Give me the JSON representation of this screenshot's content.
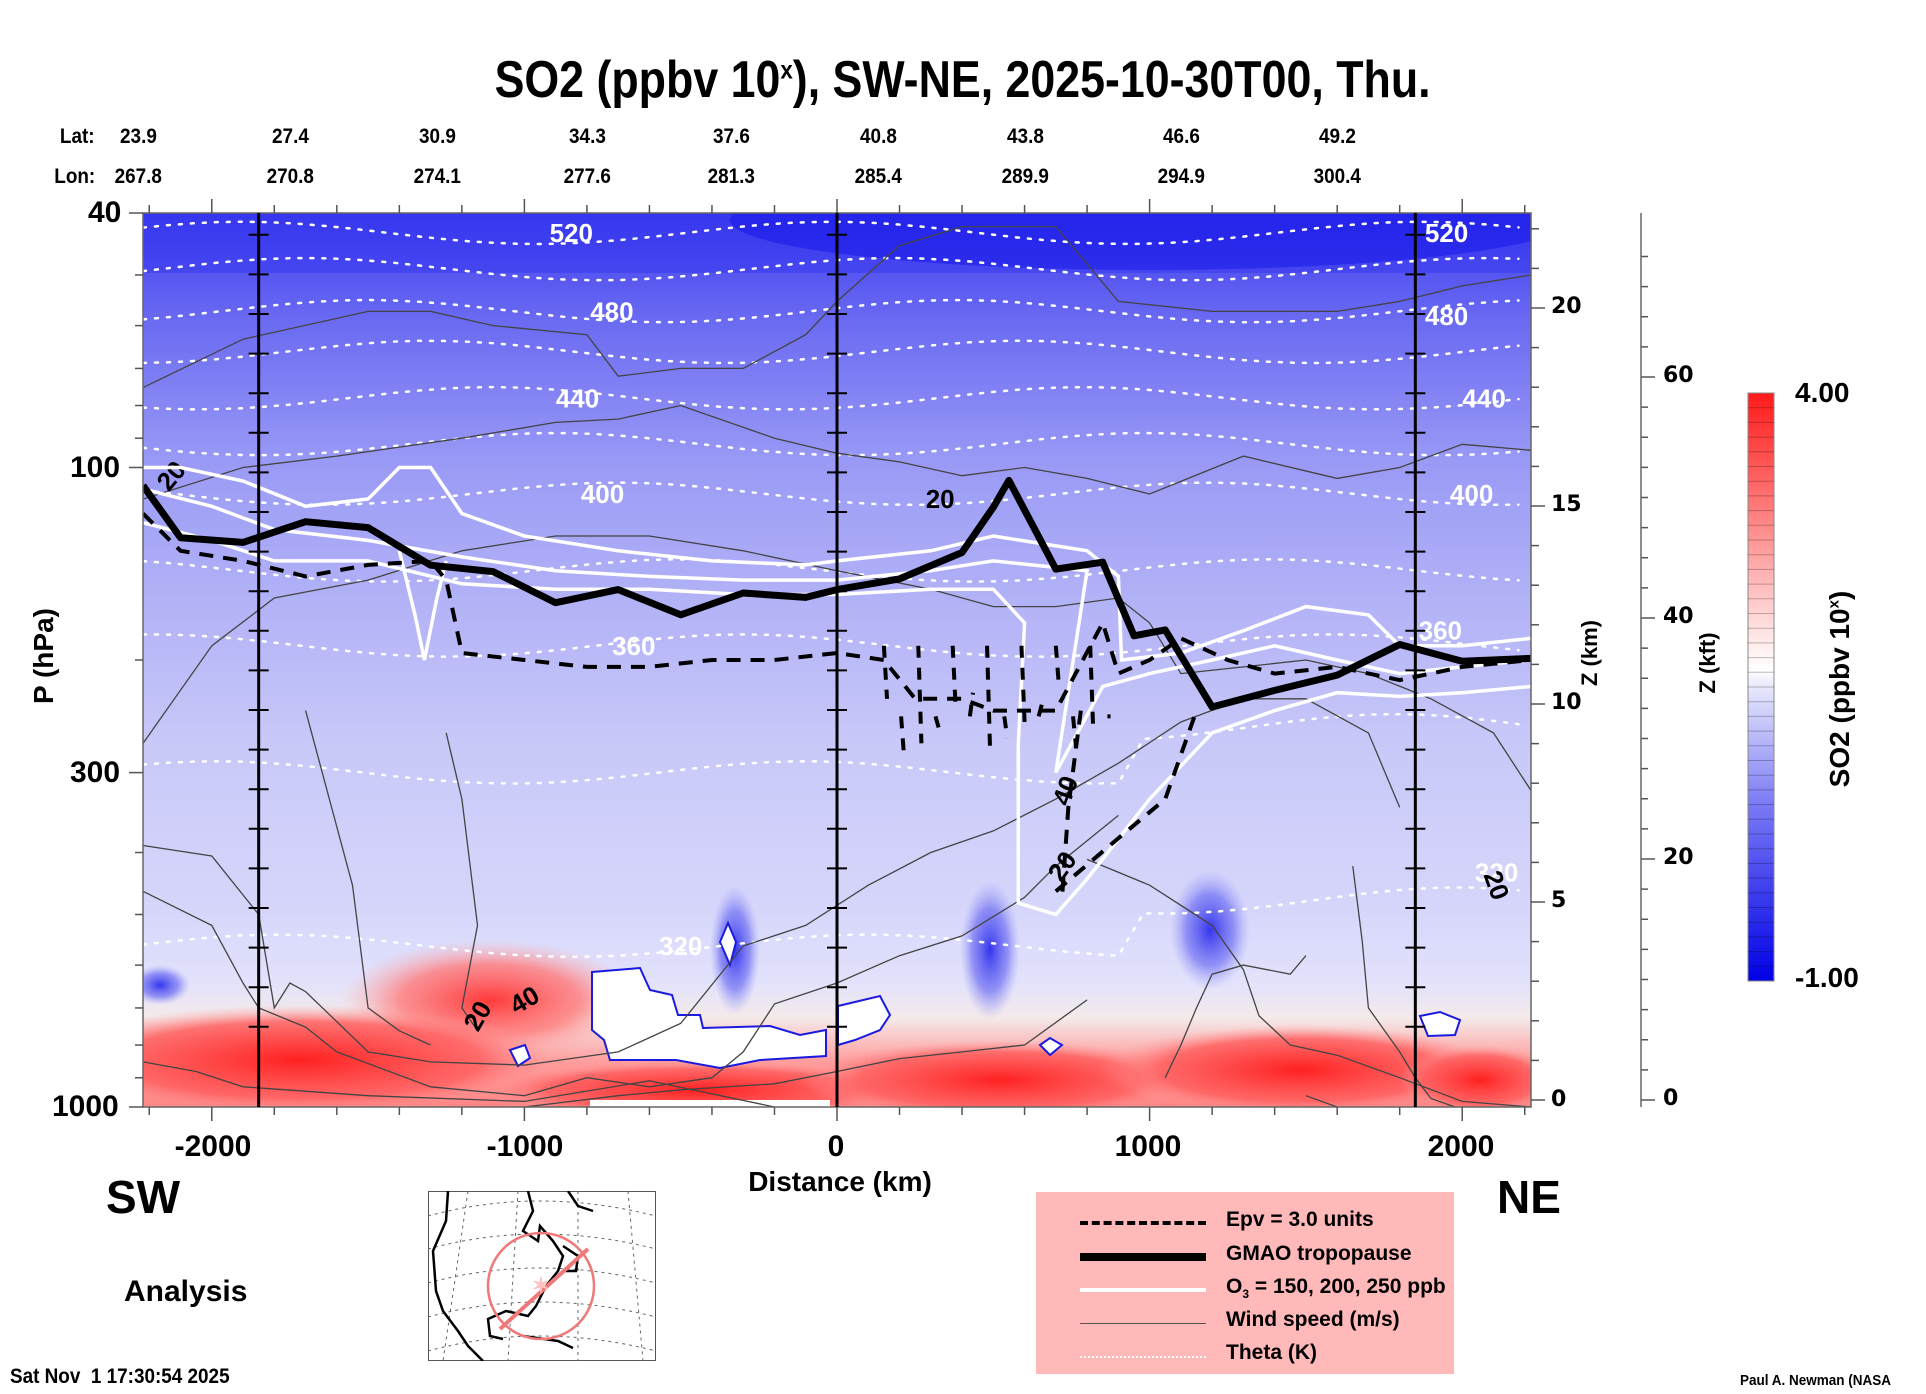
{
  "chart_data": {
    "type": "heatmap",
    "title": "SO2 (ppbv 10^x), SW-NE, 2025-10-30T00, Thu.",
    "title_parts": {
      "prefix": "SO2 (ppbv 10",
      "sup": "x",
      "suffix": "), SW-NE, 2025-10-30T00, Thu."
    },
    "xlabel": "Distance (km)",
    "ylabel": "P (hPa)",
    "y2label": "Z (km)",
    "y3label": "Z (kft)",
    "x_range": [
      -2220,
      2220
    ],
    "y_range_hpa": [
      1000,
      40
    ],
    "y_scale": "log",
    "x_ticks": [
      -2000,
      -1000,
      0,
      1000,
      2000
    ],
    "x_tick_labels": [
      "-2000",
      "-1000",
      "0",
      "1000",
      "2000"
    ],
    "y_ticks_hpa": [
      40,
      100,
      300,
      1000
    ],
    "y_tick_labels": [
      "40",
      "100",
      "300",
      "1000"
    ],
    "z_km_ticks": [
      0,
      5,
      10,
      15,
      20
    ],
    "z_kft_ticks": [
      0,
      20,
      40,
      60
    ],
    "lat_label": "Lat:",
    "lon_label": "Lon:",
    "lat_values": [
      "23.9",
      "27.4",
      "30.9",
      "34.3",
      "37.6",
      "40.8",
      "43.8",
      "46.6",
      "49.2"
    ],
    "lon_values": [
      "267.8",
      "270.8",
      "274.1",
      "277.6",
      "281.3",
      "285.4",
      "289.9",
      "294.9",
      "300.4"
    ],
    "latlon_distance_km": [
      -2200,
      -1750,
      -1280,
      -800,
      -340,
      130,
      600,
      1100,
      1600
    ],
    "reference_lines_km": [
      -1850,
      0,
      1850
    ],
    "colorbar": {
      "label": "SO2 (ppbv 10^x)",
      "min": -1.0,
      "max": 4.0,
      "min_label": "-1.00",
      "max_label": "4.00",
      "colors": [
        "#0000e6",
        "#ffffff",
        "#ff1a1a"
      ],
      "levels": 40
    },
    "theta_contours_K": [
      {
        "value": 320,
        "label": "320"
      },
      {
        "value": 360,
        "label": "360"
      },
      {
        "value": 400,
        "label": "400"
      },
      {
        "value": 440,
        "label": "440"
      },
      {
        "value": 480,
        "label": "480"
      },
      {
        "value": 520,
        "label": "520"
      }
    ],
    "wind_contour_labels": [
      "20",
      "40",
      "20",
      "20",
      "40",
      "20",
      "20"
    ],
    "tropopause_hpa": {
      "x": [
        -2220,
        -2100,
        -1900,
        -1700,
        -1500,
        -1300,
        -1100,
        -900,
        -700,
        -500,
        -300,
        -100,
        0,
        200,
        400,
        500,
        550,
        700,
        850,
        950,
        1050,
        1200,
        1400,
        1600,
        1800,
        2000,
        2220
      ],
      "p": [
        110,
        125,
        135,
        118,
        128,
        138,
        150,
        158,
        160,
        165,
        162,
        155,
        160,
        145,
        140,
        112,
        108,
        140,
        145,
        178,
        185,
        230,
        230,
        205,
        195,
        195,
        205
      ]
    },
    "series_legend": [
      {
        "name": "Epv = 3.0 units",
        "style": "dashed"
      },
      {
        "name": "GMAO tropopause",
        "style": "thick"
      },
      {
        "name": "O3 = 150, 200, 250 ppb",
        "style": "white"
      },
      {
        "name": "Wind speed (m/s)",
        "style": "thin"
      },
      {
        "name": "Theta (K)",
        "style": "dotted"
      }
    ],
    "legend_placement": "bottom-center"
  },
  "labels": {
    "direction_left": "SW",
    "direction_right": "NE",
    "analysis": "Analysis",
    "timestamp": "Sat Nov  1 17:30:54 2025",
    "credit": "Paul A. Newman (NASA",
    "legend": {
      "epv": "Epv = 3.0 units",
      "tropopause": "GMAO tropopause",
      "o3_prefix": "O",
      "o3_sub": "3",
      "o3_suffix": " = 150, 200, 250 ppb",
      "wind": "Wind speed (m/s)",
      "theta": "Theta (K)"
    }
  },
  "colors": {
    "so2_low": "#0000e6",
    "so2_mid": "#ffffff",
    "so2_high": "#ff1a1a",
    "legend_bg": "#ffb9b9",
    "map_track": "#f08080"
  }
}
